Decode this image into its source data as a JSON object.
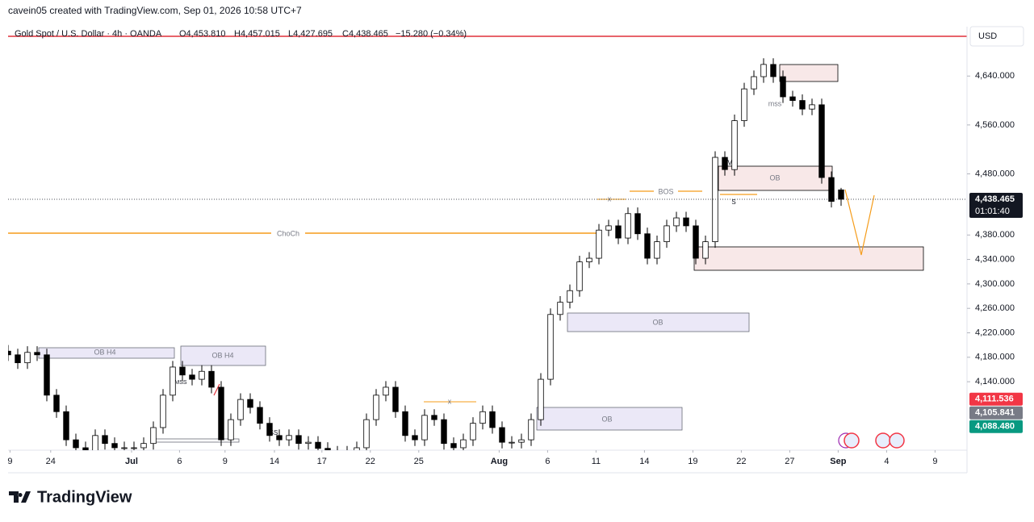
{
  "header": {
    "credit": "cavein05 created with TradingView.com, Sep 01, 2026 10:58 UTC+7",
    "symbol": "Gold Spot / U.S. Dollar · 4h · OANDA",
    "open": "O4,453.810",
    "high": "H4,457.015",
    "low": "L4,427.695",
    "close": "C4,438.465",
    "change": "−15.280 (−0.34%)"
  },
  "currency": "USD",
  "logo": "TradingView",
  "annotations": [
    "OB H4",
    "OB H4",
    "OB",
    "OB",
    "OB",
    "ChoCh",
    "BOS",
    "FVG",
    "mss",
    "MSS",
    "SS",
    "S",
    "x",
    "x"
  ],
  "chart_data": {
    "type": "candlestick",
    "up_color": "#ffffff",
    "down_color": "#000000",
    "grid": false,
    "x": [
      0,
      1,
      2,
      3,
      4,
      5,
      6,
      7,
      8,
      9,
      10,
      11,
      12,
      13,
      14,
      15,
      16,
      17,
      18,
      19,
      20,
      21,
      22,
      23,
      24,
      25,
      26,
      27,
      28,
      29,
      30,
      31,
      32,
      33,
      34,
      35,
      36,
      37,
      38,
      39,
      40,
      41,
      42,
      43,
      44,
      45,
      46,
      47,
      48,
      49,
      50,
      51,
      52,
      53,
      54,
      55,
      56,
      57,
      58,
      59,
      60,
      61,
      62,
      63,
      64,
      65,
      66,
      67,
      68,
      69,
      70,
      71,
      72,
      73,
      74,
      75,
      76,
      77,
      78,
      79,
      80,
      81,
      82,
      83,
      84,
      85,
      86
    ],
    "opens": [
      4190,
      4184,
      4171,
      4188,
      4184,
      4118,
      4091,
      4045,
      4032,
      4025,
      4052,
      4039,
      4032,
      4032,
      4032,
      4039,
      4065,
      4118,
      4164,
      4151,
      4144,
      4157,
      4131,
      4045,
      4078,
      4111,
      4098,
      4072,
      4052,
      4045,
      4052,
      4039,
      4041,
      4031,
      4025,
      4025,
      4025,
      4032,
      4078,
      4118,
      4131,
      4091,
      4052,
      4045,
      4085,
      4078,
      4039,
      4032,
      4045,
      4072,
      4091,
      4065,
      4041,
      4041,
      4045,
      4078,
      4144,
      4250,
      4270,
      4289,
      4336,
      4342,
      4388,
      4395,
      4375,
      4415,
      4382,
      4342,
      4369,
      4395,
      4408,
      4395,
      4342,
      4369,
      4507,
      4487,
      4567,
      4619,
      4639,
      4659,
      4639,
      4606,
      4600,
      4586,
      4593,
      4474,
      4453.81
    ],
    "highs": [
      4200,
      4194,
      4198,
      4198,
      4194,
      4128,
      4101,
      4055,
      4042,
      4062,
      4062,
      4049,
      4042,
      4042,
      4049,
      4075,
      4128,
      4174,
      4174,
      4161,
      4167,
      4167,
      4141,
      4088,
      4121,
      4121,
      4108,
      4082,
      4062,
      4062,
      4062,
      4051,
      4051,
      4041,
      4035,
      4035,
      4042,
      4088,
      4128,
      4141,
      4141,
      4101,
      4062,
      4095,
      4095,
      4088,
      4049,
      4055,
      4082,
      4101,
      4101,
      4075,
      4051,
      4055,
      4088,
      4154,
      4260,
      4280,
      4299,
      4346,
      4352,
      4398,
      4405,
      4405,
      4425,
      4425,
      4392,
      4379,
      4405,
      4418,
      4418,
      4405,
      4379,
      4517,
      4517,
      4577,
      4629,
      4649,
      4669,
      4669,
      4649,
      4616,
      4610,
      4603,
      4603,
      4484,
      4457.015
    ],
    "lows": [
      4174,
      4161,
      4161,
      4174,
      4108,
      4081,
      4035,
      4022,
      4015,
      4015,
      4029,
      4022,
      4022,
      4022,
      4022,
      4029,
      4055,
      4108,
      4141,
      4134,
      4134,
      4121,
      4035,
      4035,
      4068,
      4088,
      4062,
      4042,
      4035,
      4035,
      4029,
      4029,
      4021,
      4015,
      4015,
      4015,
      4015,
      4022,
      4068,
      4108,
      4081,
      4042,
      4035,
      4035,
      4068,
      4029,
      4022,
      4022,
      4035,
      4062,
      4055,
      4031,
      4031,
      4031,
      4035,
      4068,
      4134,
      4240,
      4260,
      4279,
      4326,
      4332,
      4378,
      4365,
      4365,
      4372,
      4332,
      4332,
      4359,
      4385,
      4385,
      4332,
      4332,
      4359,
      4477,
      4477,
      4557,
      4609,
      4629,
      4629,
      4596,
      4590,
      4576,
      4576,
      4464,
      4425,
      4427.695
    ],
    "closes": [
      4184,
      4171,
      4188,
      4184,
      4118,
      4091,
      4045,
      4032,
      4025,
      4052,
      4039,
      4032,
      4032,
      4032,
      4039,
      4065,
      4118,
      4164,
      4151,
      4144,
      4157,
      4131,
      4045,
      4078,
      4111,
      4098,
      4072,
      4052,
      4045,
      4052,
      4039,
      4041,
      4031,
      4025,
      4025,
      4025,
      4032,
      4078,
      4118,
      4131,
      4091,
      4052,
      4045,
      4085,
      4078,
      4039,
      4032,
      4045,
      4072,
      4091,
      4065,
      4041,
      4041,
      4045,
      4078,
      4144,
      4250,
      4270,
      4289,
      4336,
      4342,
      4388,
      4395,
      4375,
      4415,
      4382,
      4342,
      4369,
      4395,
      4408,
      4395,
      4342,
      4369,
      4507,
      4487,
      4567,
      4619,
      4639,
      4659,
      4639,
      4606,
      4600,
      4586,
      4593,
      4474,
      4435,
      4438.465
    ],
    "xlim": [
      0,
      99
    ],
    "xticks": [
      {
        "value": 0.2,
        "label": "9"
      },
      {
        "value": 4.4,
        "label": "24"
      },
      {
        "value": 12.75,
        "label": "Jul"
      },
      {
        "value": 17.7,
        "label": "6"
      },
      {
        "value": 22.4,
        "label": "9"
      },
      {
        "value": 27.5,
        "label": "14"
      },
      {
        "value": 32.4,
        "label": "17"
      },
      {
        "value": 37.4,
        "label": "22"
      },
      {
        "value": 42.4,
        "label": "25"
      },
      {
        "value": 50.7,
        "label": "Aug"
      },
      {
        "value": 55.7,
        "label": "6"
      },
      {
        "value": 60.7,
        "label": "11"
      },
      {
        "value": 65.7,
        "label": "14"
      },
      {
        "value": 70.7,
        "label": "19"
      },
      {
        "value": 75.7,
        "label": "22"
      },
      {
        "value": 80.7,
        "label": "27"
      },
      {
        "value": 85.7,
        "label": "Sep"
      },
      {
        "value": 90.7,
        "label": "4"
      },
      {
        "value": 95.7,
        "label": "9"
      }
    ],
    "ylim": [
      4028,
      4705
    ],
    "yticks": [
      {
        "value": 4140,
        "label": "4,140.000"
      },
      {
        "value": 4180,
        "label": "4,180.000"
      },
      {
        "value": 4220,
        "label": "4,220.000"
      },
      {
        "value": 4260,
        "label": "4,260.000"
      },
      {
        "value": 4300,
        "label": "4,300.000"
      },
      {
        "value": 4340,
        "label": "4,340.000"
      },
      {
        "value": 4380,
        "label": "4,380.000"
      },
      {
        "value": 4480,
        "label": "4,480.000"
      },
      {
        "value": 4560,
        "label": "4,560.000"
      },
      {
        "value": 4640,
        "label": "4,640.000"
      }
    ],
    "last_price": {
      "value": 4438.465,
      "label": "4,438.465",
      "countdown": "01:01:40"
    },
    "price_labels": [
      {
        "value": 4111.536,
        "label": "4,111.536",
        "color": "#f23645"
      },
      {
        "value": 4105.841,
        "label": "4,105.841",
        "color": "#787b86"
      },
      {
        "value": 4088.48,
        "label": "4,088.480",
        "color": "#089981"
      }
    ]
  }
}
